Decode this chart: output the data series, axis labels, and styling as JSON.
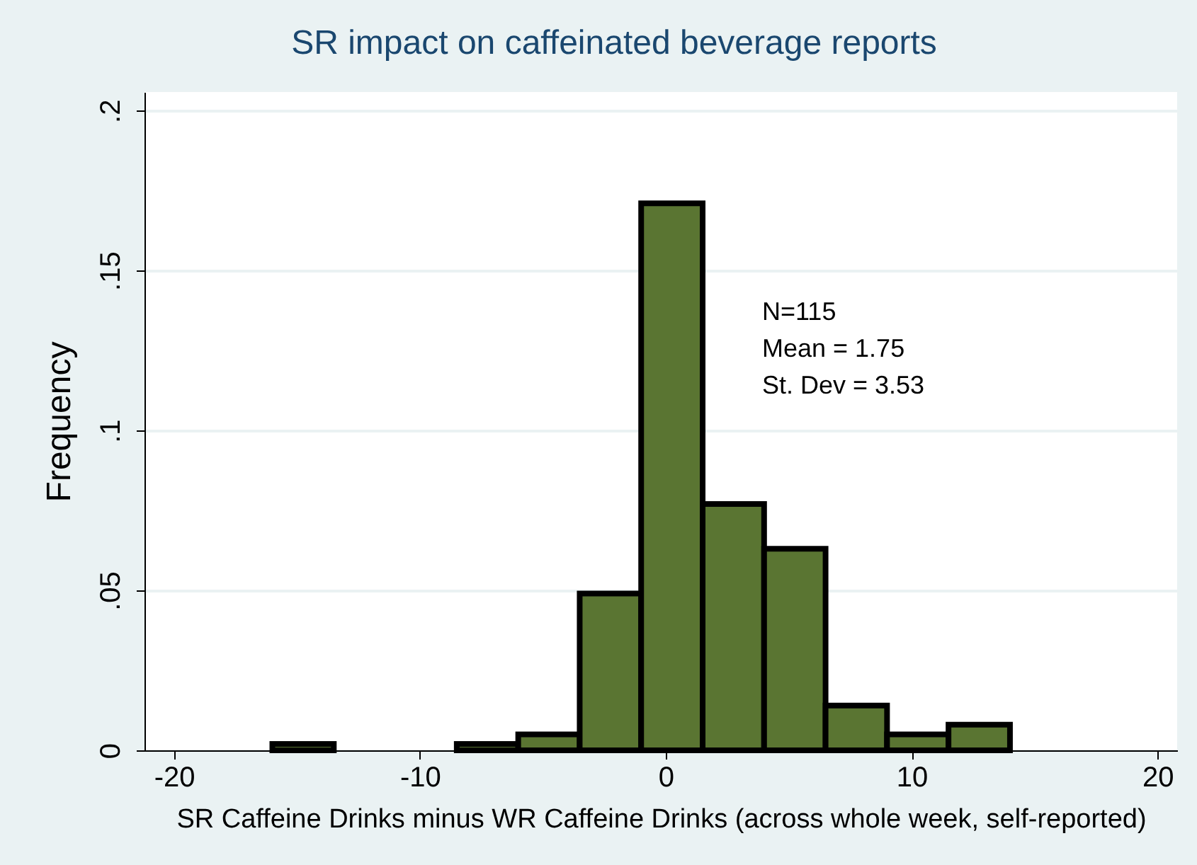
{
  "chart_data": {
    "type": "histogram",
    "title": "SR impact on caffeinated beverage reports",
    "xlabel": "SR Caffeine Drinks minus WR Caffeine Drinks (across whole week, self-reported)",
    "ylabel": "Frequency",
    "bins": [
      -16,
      -13.5,
      -11,
      -8.5,
      -6,
      -3.5,
      -1,
      1.5,
      4,
      6.5,
      9,
      11.5,
      14
    ],
    "values": [
      0.002,
      0,
      0,
      0.002,
      0.005,
      0.049,
      0.171,
      0.077,
      0.063,
      0.014,
      0.005,
      0.008
    ],
    "color": "#5a7532",
    "xlim": [
      -21.2,
      20.8
    ],
    "xticks": [
      -20,
      -10,
      0,
      10,
      20
    ],
    "ylim": [
      0,
      0.2058
    ],
    "yticks": [
      {
        "value": 0,
        "label": "0"
      },
      {
        "value": 0.05,
        "label": ".05"
      },
      {
        "value": 0.1,
        "label": ".1"
      },
      {
        "value": 0.15,
        "label": ".15"
      },
      {
        "value": 0.2,
        "label": ".2"
      }
    ],
    "grid": "y",
    "annotations": [
      "N=115",
      "Mean = 1.75",
      "St. Dev = 3.53"
    ]
  }
}
